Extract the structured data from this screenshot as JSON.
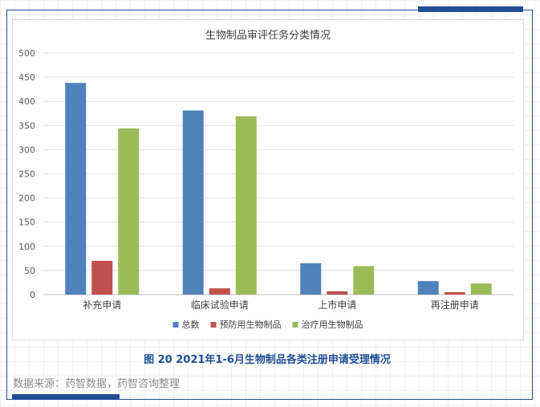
{
  "chart_data": {
    "type": "bar",
    "title": "生物制品审评任务分类情况",
    "categories": [
      "补充申请",
      "临床试验申请",
      "上市申请",
      "再注册申请"
    ],
    "series": [
      {
        "name": "总数",
        "color": "#4f81bd",
        "values": [
          438,
          381,
          65,
          28
        ]
      },
      {
        "name": "预防用生物制品",
        "color": "#c0504d",
        "values": [
          70,
          13,
          7,
          5
        ]
      },
      {
        "name": "治疗用生物制品",
        "color": "#9bbb59",
        "values": [
          344,
          369,
          59,
          23
        ]
      }
    ],
    "yticks": [
      0,
      50,
      100,
      150,
      200,
      250,
      300,
      350,
      400,
      450,
      500
    ],
    "ylim": [
      0,
      500
    ],
    "grid": true,
    "legend_position": "bottom"
  },
  "caption": "图 20 2021年1-6月生物制品各类注册申请受理情况",
  "source": "数据来源：药智数据，药智咨询整理"
}
